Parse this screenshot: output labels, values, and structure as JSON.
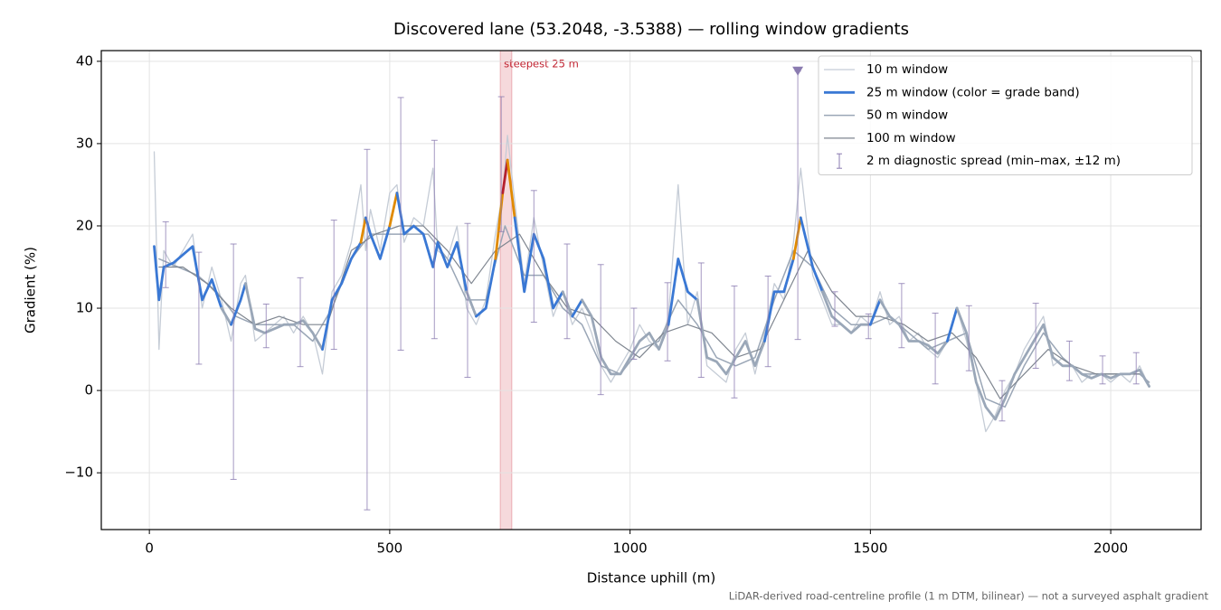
{
  "chart_data": {
    "type": "line",
    "title": "Discovered lane (53.2048, -3.5388) — rolling window gradients",
    "xlabel": "Distance uphill (m)",
    "ylabel": "Gradient (%)",
    "footnote": "LiDAR-derived road-centreline profile (1 m DTM, bilinear) — not a surveyed asphalt gradient",
    "xlim": [
      -100,
      2188
    ],
    "ylim": [
      -16.9,
      41.3
    ],
    "xticks": [
      0,
      500,
      1000,
      1500,
      2000
    ],
    "yticks": [
      {
        "value": -10,
        "label": "−10"
      },
      0,
      10,
      20,
      30,
      40
    ],
    "grid": true,
    "legend": "upper right",
    "highlight": {
      "label": "steepest 25 m",
      "x": [
        730,
        754
      ],
      "color": "#e8a0a8"
    },
    "series": [
      {
        "name": "10 m window",
        "color": "#c5ccd6",
        "x": [
          10,
          20,
          30,
          50,
          70,
          90,
          110,
          130,
          150,
          170,
          190,
          200,
          220,
          240,
          260,
          280,
          300,
          320,
          340,
          360,
          380,
          400,
          420,
          440,
          450,
          460,
          480,
          500,
          515,
          530,
          550,
          570,
          590,
          600,
          620,
          640,
          660,
          680,
          700,
          720,
          735,
          745,
          760,
          780,
          800,
          820,
          840,
          860,
          880,
          900,
          920,
          940,
          960,
          980,
          1000,
          1020,
          1040,
          1060,
          1080,
          1100,
          1120,
          1140,
          1160,
          1180,
          1200,
          1220,
          1240,
          1260,
          1280,
          1300,
          1320,
          1340,
          1355,
          1380,
          1400,
          1420,
          1440,
          1460,
          1480,
          1500,
          1520,
          1540,
          1560,
          1580,
          1600,
          1620,
          1640,
          1660,
          1680,
          1700,
          1720,
          1740,
          1760,
          1780,
          1800,
          1820,
          1840,
          1860,
          1880,
          1900,
          1920,
          1940,
          1960,
          1980,
          2000,
          2020,
          2040,
          2060,
          2080
        ],
        "values": [
          29,
          5,
          17,
          15,
          17,
          19,
          10,
          15,
          11,
          6,
          13,
          14,
          6,
          7,
          8,
          9,
          7,
          9,
          7,
          2,
          12,
          14,
          18,
          25,
          17,
          22,
          17,
          24,
          25,
          18,
          21,
          20,
          27,
          17,
          16,
          20,
          10,
          8,
          11,
          19,
          24,
          31,
          23,
          13,
          21,
          15,
          9,
          12,
          8,
          10,
          7,
          3,
          1,
          3,
          5,
          8,
          6,
          5,
          9,
          25,
          8,
          12,
          3,
          2,
          1,
          5,
          7,
          2,
          7,
          13,
          11,
          18,
          27,
          14,
          11,
          8,
          8,
          7,
          9,
          8,
          12,
          8,
          9,
          6,
          7,
          5,
          4,
          6,
          10,
          6,
          1,
          -5,
          -3,
          0,
          2,
          5,
          7,
          9,
          3,
          4,
          3,
          1,
          2,
          2,
          1,
          2,
          1,
          3,
          0.5
        ]
      },
      {
        "name": "25 m window (color = grade band)",
        "color": "#3a78d4",
        "x": [
          10,
          20,
          30,
          50,
          70,
          90,
          110,
          130,
          150,
          170,
          190,
          200,
          220,
          240,
          260,
          280,
          300,
          320,
          340,
          360,
          380,
          400,
          420,
          440,
          450,
          460,
          480,
          500,
          515,
          530,
          550,
          570,
          590,
          600,
          620,
          640,
          660,
          680,
          700,
          720,
          735,
          745,
          760,
          780,
          800,
          820,
          840,
          860,
          880,
          900,
          920,
          940,
          960,
          980,
          1000,
          1020,
          1040,
          1060,
          1080,
          1100,
          1120,
          1140,
          1160,
          1180,
          1200,
          1220,
          1240,
          1260,
          1280,
          1300,
          1320,
          1340,
          1355,
          1380,
          1400,
          1420,
          1440,
          1460,
          1480,
          1500,
          1520,
          1540,
          1560,
          1580,
          1600,
          1620,
          1640,
          1660,
          1680,
          1700,
          1720,
          1740,
          1760,
          1780,
          1800,
          1820,
          1840,
          1860,
          1880,
          1900,
          1920,
          1940,
          1960,
          1980,
          2000,
          2020,
          2040,
          2060,
          2080
        ],
        "values": [
          17.5,
          11,
          15,
          15.5,
          16.5,
          17.5,
          11,
          13.5,
          10,
          8,
          11,
          13,
          7.5,
          7,
          7.5,
          8,
          8,
          8.5,
          7,
          5,
          11,
          13,
          16,
          18,
          21,
          19,
          16,
          20,
          24,
          19,
          20,
          19,
          15,
          18,
          15,
          18,
          12,
          9,
          10,
          16,
          24,
          28,
          21,
          12,
          19,
          16,
          10,
          12,
          9,
          11,
          9,
          4,
          2,
          2,
          4,
          6,
          7,
          5,
          8,
          16,
          12,
          11,
          4,
          3.5,
          2,
          4,
          6,
          3,
          6,
          12,
          12,
          16,
          21,
          15,
          12,
          9,
          8,
          7,
          8,
          8,
          11,
          9,
          8,
          6,
          6,
          5.5,
          4.5,
          6,
          10,
          7,
          1,
          -2,
          -3.5,
          -1,
          2,
          4,
          6,
          8,
          4,
          3,
          3,
          2,
          1.5,
          2,
          1.5,
          2,
          2,
          2.5,
          0.5
        ],
        "point_colors": [
          "#3a78d4",
          "#3a78d4",
          "#3a78d4",
          "#3a78d4",
          "#3a78d4",
          "#3a78d4",
          "#3a78d4",
          "#3a78d4",
          "#3a78d4",
          "#9aa7b8",
          "#3a78d4",
          "#3a78d4",
          "#9aa7b8",
          "#9aa7b8",
          "#9aa7b8",
          "#9aa7b8",
          "#9aa7b8",
          "#9aa7b8",
          "#9aa7b8",
          "#9aa7b8",
          "#3a78d4",
          "#3a78d4",
          "#3a78d4",
          "#3a78d4",
          "#e08a00",
          "#3a78d4",
          "#3a78d4",
          "#3a78d4",
          "#e08a00",
          "#3a78d4",
          "#3a78d4",
          "#3a78d4",
          "#3a78d4",
          "#3a78d4",
          "#3a78d4",
          "#3a78d4",
          "#3a78d4",
          "#9aa7b8",
          "#3a78d4",
          "#3a78d4",
          "#e08a00",
          "#b5202e",
          "#e08a00",
          "#3a78d4",
          "#3a78d4",
          "#3a78d4",
          "#3a78d4",
          "#3a78d4",
          "#9aa7b8",
          "#3a78d4",
          "#9aa7b8",
          "#9aa7b8",
          "#9aa7b8",
          "#9aa7b8",
          "#9aa7b8",
          "#9aa7b8",
          "#9aa7b8",
          "#9aa7b8",
          "#9aa7b8",
          "#3a78d4",
          "#3a78d4",
          "#3a78d4",
          "#9aa7b8",
          "#9aa7b8",
          "#9aa7b8",
          "#9aa7b8",
          "#9aa7b8",
          "#9aa7b8",
          "#9aa7b8",
          "#3a78d4",
          "#3a78d4",
          "#3a78d4",
          "#e08a00",
          "#3a78d4",
          "#3a78d4",
          "#9aa7b8",
          "#9aa7b8",
          "#9aa7b8",
          "#9aa7b8",
          "#9aa7b8",
          "#3a78d4",
          "#9aa7b8",
          "#9aa7b8",
          "#9aa7b8",
          "#9aa7b8",
          "#9aa7b8",
          "#9aa7b8",
          "#9aa7b8",
          "#3a78d4",
          "#9aa7b8",
          "#9aa7b8",
          "#9aa7b8",
          "#9aa7b8",
          "#9aa7b8",
          "#9aa7b8",
          "#9aa7b8",
          "#9aa7b8",
          "#9aa7b8",
          "#9aa7b8",
          "#9aa7b8",
          "#9aa7b8",
          "#9aa7b8",
          "#9aa7b8",
          "#9aa7b8",
          "#9aa7b8",
          "#9aa7b8",
          "#9aa7b8",
          "#9aa7b8",
          "#9aa7b8"
        ]
      },
      {
        "name": "50 m window",
        "color": "#9aa6b6",
        "x": [
          20,
          60,
          100,
          140,
          180,
          220,
          260,
          300,
          340,
          380,
          420,
          460,
          500,
          540,
          580,
          620,
          660,
          700,
          740,
          780,
          820,
          860,
          900,
          940,
          980,
          1020,
          1060,
          1100,
          1140,
          1180,
          1220,
          1260,
          1300,
          1340,
          1380,
          1420,
          1460,
          1500,
          1540,
          1580,
          1620,
          1660,
          1700,
          1740,
          1780,
          1820,
          1860,
          1900,
          1940,
          1980,
          2020,
          2060,
          2080
        ],
        "values": [
          16,
          15,
          14,
          12,
          9,
          8,
          8,
          8,
          6,
          10,
          16,
          19,
          19,
          19,
          19,
          16,
          11,
          11,
          20,
          14,
          14,
          10,
          8,
          3,
          2,
          5,
          6,
          11,
          8,
          4,
          3,
          4,
          11,
          17,
          15,
          10,
          8,
          8,
          9,
          7,
          5,
          6,
          7,
          -1,
          -2,
          3,
          7,
          4,
          2,
          2,
          2,
          2,
          1
        ]
      },
      {
        "name": "100 m window",
        "color": "#7f8690",
        "x": [
          20,
          70,
          120,
          170,
          220,
          270,
          320,
          370,
          420,
          470,
          520,
          570,
          620,
          670,
          720,
          770,
          820,
          870,
          920,
          970,
          1020,
          1070,
          1120,
          1170,
          1220,
          1270,
          1320,
          1370,
          1420,
          1470,
          1520,
          1570,
          1620,
          1670,
          1720,
          1770,
          1820,
          1870,
          1920,
          1970,
          2020,
          2060
        ],
        "values": [
          15,
          15,
          13,
          10,
          8,
          9,
          8,
          8,
          17,
          19,
          20,
          20,
          17,
          13,
          17,
          19,
          14,
          10,
          9,
          6,
          4,
          7,
          8,
          7,
          4,
          5,
          11,
          17,
          12,
          9,
          9,
          8,
          6,
          7,
          4,
          -1,
          2,
          5,
          3,
          2,
          2,
          2
        ]
      }
    ],
    "error_bars": {
      "name": "2 m diagnostic spread (min–max, ±12 m)",
      "color": "#8a7bb0",
      "x": [
        34,
        103,
        175,
        243,
        314,
        384,
        453,
        523,
        593,
        662,
        732,
        800,
        869,
        939,
        1008,
        1078,
        1148,
        1217,
        1287,
        1349,
        1426,
        1496,
        1565,
        1635,
        1705,
        1774,
        1844,
        1914,
        1983,
        2053
      ],
      "low": [
        12.5,
        3.2,
        -10.8,
        5.2,
        2.9,
        5.0,
        -14.5,
        4.9,
        6.3,
        1.6,
        19.3,
        8.3,
        6.3,
        -0.5,
        3.8,
        3.6,
        1.6,
        -0.9,
        2.9,
        6.2,
        7.8,
        6.3,
        5.2,
        0.8,
        2.4,
        -3.7,
        2.7,
        1.2,
        0.8,
        0.8
      ],
      "high": [
        20.5,
        16.8,
        17.8,
        10.5,
        13.7,
        20.7,
        29.3,
        35.6,
        30.4,
        20.3,
        35.7,
        24.3,
        17.8,
        15.3,
        10.0,
        13.1,
        15.5,
        12.7,
        13.9,
        38.8,
        12.0,
        9.3,
        13.0,
        9.4,
        10.3,
        1.2,
        10.6,
        6.0,
        4.2,
        4.6
      ]
    },
    "markers": [
      {
        "x": 1349,
        "y": 38.8,
        "color": "#8a7bb0",
        "symbol": "triangle-down"
      }
    ]
  }
}
